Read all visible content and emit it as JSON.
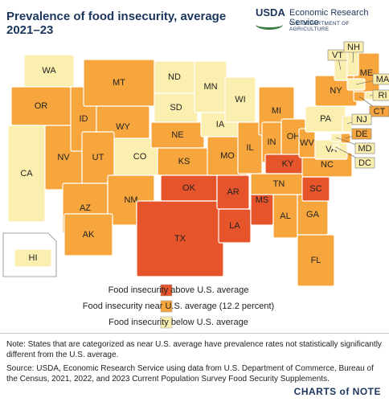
{
  "header": {
    "title": "Prevalence of food insecurity, average 2021–23",
    "agency": "USDA",
    "service": "Economic Research Service",
    "department": "U.S. DEPARTMENT OF AGRICULTURE"
  },
  "legend": [
    {
      "label": "Food insecurity above U.S. average",
      "color": "#e5542b"
    },
    {
      "label": "Food insecurity near U.S. average (12.2 percent)",
      "color": "#f6a63c"
    },
    {
      "label": "Food insecurity below U.S. average",
      "color": "#fbefb0"
    }
  ],
  "states": [
    {
      "label": "WA",
      "category": 2
    },
    {
      "label": "OR",
      "category": 1
    },
    {
      "label": "CA",
      "category": 2
    },
    {
      "label": "NV",
      "category": 1
    },
    {
      "label": "ID",
      "category": 1
    },
    {
      "label": "MT",
      "category": 1
    },
    {
      "label": "WY",
      "category": 1
    },
    {
      "label": "UT",
      "category": 1
    },
    {
      "label": "AZ",
      "category": 1
    },
    {
      "label": "CO",
      "category": 2
    },
    {
      "label": "NM",
      "category": 1
    },
    {
      "label": "ND",
      "category": 2
    },
    {
      "label": "SD",
      "category": 2
    },
    {
      "label": "NE",
      "category": 1
    },
    {
      "label": "KS",
      "category": 1
    },
    {
      "label": "OK",
      "category": 0
    },
    {
      "label": "TX",
      "category": 0
    },
    {
      "label": "MN",
      "category": 2
    },
    {
      "label": "IA",
      "category": 2
    },
    {
      "label": "MO",
      "category": 1
    },
    {
      "label": "AR",
      "category": 0
    },
    {
      "label": "LA",
      "category": 0
    },
    {
      "label": "WI",
      "category": 2
    },
    {
      "label": "IL",
      "category": 1
    },
    {
      "label": "MS",
      "category": 0
    },
    {
      "label": "MI",
      "category": 1
    },
    {
      "label": "IN",
      "category": 1
    },
    {
      "label": "OH",
      "category": 1
    },
    {
      "label": "KY",
      "category": 0
    },
    {
      "label": "TN",
      "category": 1
    },
    {
      "label": "AL",
      "category": 1
    },
    {
      "label": "GA",
      "category": 1
    },
    {
      "label": "FL",
      "category": 1
    },
    {
      "label": "SC",
      "category": 0
    },
    {
      "label": "NC",
      "category": 1
    },
    {
      "label": "WV",
      "category": 1
    },
    {
      "label": "VA",
      "category": 2
    },
    {
      "label": "PA",
      "category": 2
    },
    {
      "label": "NY",
      "category": 1
    },
    {
      "label": "ME",
      "category": 1
    },
    {
      "label": "VT",
      "category": 2
    },
    {
      "label": "NH",
      "category": 2
    },
    {
      "label": "MA",
      "category": 2
    },
    {
      "label": "RI",
      "category": 2
    },
    {
      "label": "CT",
      "category": 1
    },
    {
      "label": "NJ",
      "category": 2
    },
    {
      "label": "DE",
      "category": 1
    },
    {
      "label": "MD",
      "category": 2
    },
    {
      "label": "DC",
      "category": 2
    },
    {
      "label": "AK",
      "category": 1
    },
    {
      "label": "HI",
      "category": 2
    }
  ],
  "footer": {
    "note": "Note: States that are categorized as near U.S. average have prevalence rates not statistically significantly different from the U.S. average.",
    "source": "Source: USDA, Economic Research Service using data from U.S. Department of Commerce, Bureau of the Census, 2021, 2022, and 2023 Current Population Survey Food Security Supplements.",
    "brand": "CHARTS of NOTE"
  }
}
